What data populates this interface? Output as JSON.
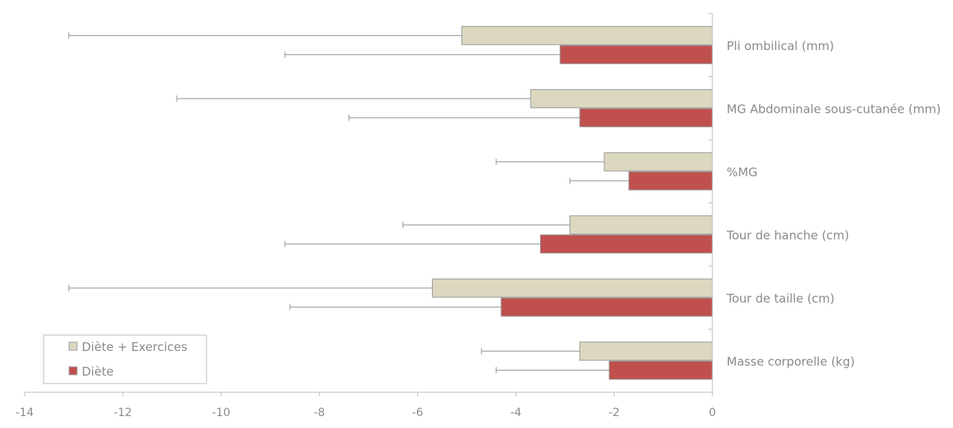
{
  "chart_data": {
    "type": "bar",
    "orientation": "horizontal",
    "categories": [
      "Pli ombilical (mm)",
      "MG Abdominale sous-cutanée (mm)",
      "%MG",
      "Tour de hanche (cm)",
      "Tour de taille (cm)",
      "Masse corporelle (kg)"
    ],
    "series": [
      {
        "name": "Diète + Exercices",
        "color": "#dcd8c0",
        "values": [
          -5.1,
          -3.7,
          -2.2,
          -2.9,
          -5.7,
          -2.7
        ],
        "error_low": [
          -13.1,
          -10.9,
          -4.4,
          -6.3,
          -13.1,
          -4.7
        ]
      },
      {
        "name": "Diète",
        "color": "#c0504d",
        "values": [
          -3.1,
          -2.7,
          -1.7,
          -3.5,
          -4.3,
          -2.1
        ],
        "error_low": [
          -8.7,
          -7.4,
          -2.9,
          -8.7,
          -8.6,
          -4.4
        ]
      }
    ],
    "xlim": [
      -14,
      0
    ],
    "xticks": [
      "-14",
      "-12",
      "-10",
      "-8",
      "-6",
      "-4",
      "-2",
      "0"
    ],
    "xtick_values": [
      -14,
      -12,
      -10,
      -8,
      -6,
      -4,
      -2,
      0
    ],
    "grid": false,
    "legend_position": "bottom-left",
    "title": "",
    "xlabel": "",
    "ylabel": ""
  }
}
